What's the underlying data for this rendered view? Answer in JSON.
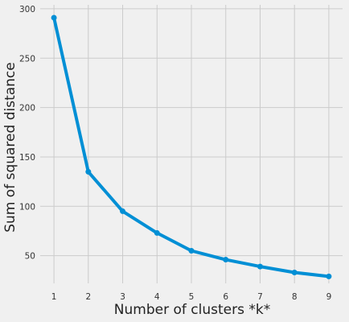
{
  "chart_data": {
    "type": "line",
    "title": "",
    "xlabel": "Number of clusters *k*",
    "ylabel": "Sum of squared distance",
    "x": [
      1,
      2,
      3,
      4,
      5,
      6,
      7,
      8,
      9
    ],
    "series": [
      {
        "values": [
          291,
          135,
          95,
          73,
          55,
          46,
          39,
          33,
          29
        ],
        "color": "#008fd5",
        "marker": "circle"
      }
    ],
    "xticks": [
      "1",
      "2",
      "3",
      "4",
      "5",
      "6",
      "7",
      "8",
      "9"
    ],
    "yticks": [
      "50",
      "100",
      "150",
      "200",
      "250",
      "300"
    ],
    "xlim": [
      0.6,
      9.4
    ],
    "ylim": [
      22,
      304
    ],
    "grid": true
  }
}
